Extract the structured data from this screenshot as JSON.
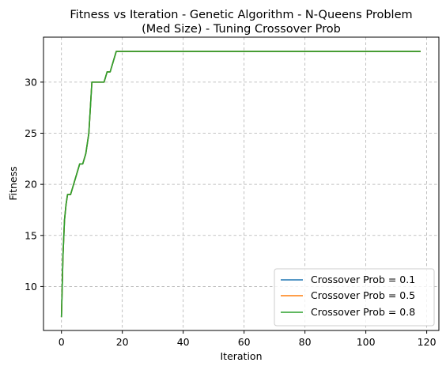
{
  "chart_data": {
    "type": "line",
    "title_lines": [
      "Fitness vs Iteration - Genetic Algorithm - N-Queens Problem",
      "(Med Size) - Tuning Crossover Prob"
    ],
    "xlabel": "Iteration",
    "ylabel": "Fitness",
    "xlim": [
      -5.9,
      124.0
    ],
    "ylim": [
      5.7,
      34.4
    ],
    "xticks": [
      0,
      20,
      40,
      60,
      80,
      100,
      120
    ],
    "yticks": [
      10,
      15,
      20,
      25,
      30
    ],
    "grid": true,
    "legend_position": "lower-right",
    "series": [
      {
        "name": "Crossover Prob = 0.1",
        "color": "#1f77b4",
        "x": [
          0,
          0.5,
          1,
          1.5,
          2,
          3,
          4,
          5,
          6,
          7,
          8,
          9,
          10,
          11,
          12,
          13,
          14,
          15,
          16,
          17,
          18,
          19,
          20,
          118
        ],
        "y": [
          7,
          13,
          16.5,
          18,
          19,
          19,
          20,
          21,
          22,
          22,
          23,
          25,
          30,
          30,
          30,
          30,
          30,
          31,
          31,
          32,
          33,
          33,
          33,
          33
        ]
      },
      {
        "name": "Crossover Prob = 0.5",
        "color": "#ff7f0e",
        "x": [
          0,
          0.5,
          1,
          1.5,
          2,
          3,
          4,
          5,
          6,
          7,
          8,
          9,
          10,
          11,
          12,
          13,
          14,
          15,
          16,
          17,
          18,
          19,
          20,
          118
        ],
        "y": [
          7,
          13,
          16.5,
          18,
          19,
          19,
          20,
          21,
          22,
          22,
          23,
          25,
          30,
          30,
          30,
          30,
          30,
          31,
          31,
          32,
          33,
          33,
          33,
          33
        ]
      },
      {
        "name": "Crossover Prob = 0.8",
        "color": "#2ca02c",
        "x": [
          0,
          0.5,
          1,
          1.5,
          2,
          3,
          4,
          5,
          6,
          7,
          8,
          9,
          10,
          11,
          12,
          13,
          14,
          15,
          16,
          17,
          18,
          19,
          20,
          118
        ],
        "y": [
          7,
          13,
          16.5,
          18,
          19,
          19,
          20,
          21,
          22,
          22,
          23,
          25,
          30,
          30,
          30,
          30,
          30,
          31,
          31,
          32,
          33,
          33,
          33,
          33
        ]
      }
    ]
  }
}
